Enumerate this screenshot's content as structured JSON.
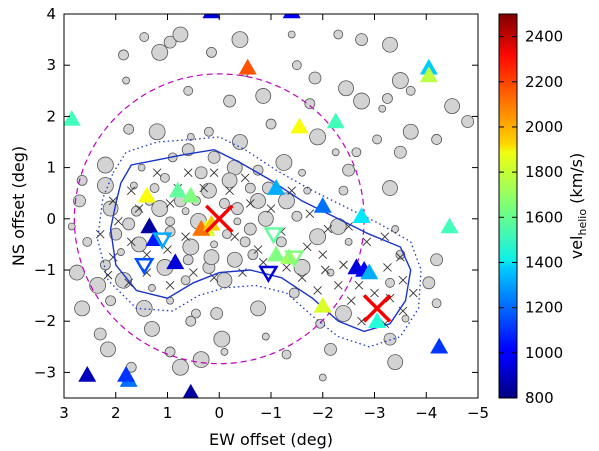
{
  "chart_data": {
    "type": "scatter",
    "xlabel": "EW offset (deg)",
    "ylabel": "NS offset (deg)",
    "xlim": [
      3,
      -5
    ],
    "ylim": [
      -3.5,
      4
    ],
    "x_ticks": [
      3,
      2,
      1,
      0,
      -1,
      -2,
      -3,
      -4,
      -5
    ],
    "x_tick_labels": [
      "3",
      "2",
      "1",
      "0",
      "−1",
      "−2",
      "−3",
      "−4",
      "−5"
    ],
    "y_ticks": [
      -3,
      -2,
      -1,
      0,
      1,
      2,
      3,
      4
    ],
    "y_tick_labels": [
      "−3",
      "−2",
      "−1",
      "0",
      "1",
      "2",
      "3",
      "4"
    ],
    "grid": false,
    "colorbar": {
      "label_main": "vel",
      "label_sub": "helio",
      "label_unit": "(km/s)",
      "range": [
        800,
        2500
      ],
      "ticks": [
        800,
        1000,
        1200,
        1400,
        1600,
        1800,
        2000,
        2200,
        2400
      ],
      "tick_labels": [
        "800",
        "1000",
        "1200",
        "1400",
        "1600",
        "1800",
        "2000",
        "2200",
        "2400"
      ],
      "colormap": "jet"
    },
    "circle_dashed": {
      "cx": 0,
      "cy": 0,
      "r": 2.8,
      "color": "#bf00bf"
    },
    "inner_contour": [
      [
        1.9,
        0.7
      ],
      [
        1.7,
        1.05
      ],
      [
        1.2,
        1.15
      ],
      [
        0.7,
        1.25
      ],
      [
        0.1,
        1.35
      ],
      [
        -0.4,
        1.1
      ],
      [
        -1.0,
        0.75
      ],
      [
        -1.6,
        0.35
      ],
      [
        -2.2,
        0.05
      ],
      [
        -2.9,
        -0.3
      ],
      [
        -3.5,
        -0.55
      ],
      [
        -3.7,
        -1.0
      ],
      [
        -3.6,
        -1.6
      ],
      [
        -3.3,
        -2.05
      ],
      [
        -2.8,
        -2.2
      ],
      [
        -2.3,
        -2.0
      ],
      [
        -1.8,
        -1.55
      ],
      [
        -1.2,
        -1.15
      ],
      [
        -0.6,
        -1.0
      ],
      [
        0.0,
        -1.05
      ],
      [
        0.5,
        -1.25
      ],
      [
        1.0,
        -1.55
      ],
      [
        1.6,
        -1.4
      ],
      [
        2.0,
        -0.9
      ],
      [
        2.1,
        -0.2
      ],
      [
        2.0,
        0.3
      ]
    ],
    "outer_contour": [
      [
        2.05,
        0.9
      ],
      [
        1.8,
        1.3
      ],
      [
        1.2,
        1.5
      ],
      [
        0.5,
        1.55
      ],
      [
        0.0,
        1.6
      ],
      [
        -0.5,
        1.35
      ],
      [
        -1.1,
        0.95
      ],
      [
        -1.8,
        0.55
      ],
      [
        -2.4,
        0.25
      ],
      [
        -3.1,
        -0.1
      ],
      [
        -3.7,
        -0.45
      ],
      [
        -3.9,
        -1.0
      ],
      [
        -3.85,
        -1.75
      ],
      [
        -3.5,
        -2.3
      ],
      [
        -2.9,
        -2.5
      ],
      [
        -2.3,
        -2.3
      ],
      [
        -1.8,
        -1.9
      ],
      [
        -1.3,
        -1.45
      ],
      [
        -0.7,
        -1.3
      ],
      [
        -0.1,
        -1.35
      ],
      [
        0.4,
        -1.5
      ],
      [
        0.9,
        -1.8
      ],
      [
        1.6,
        -1.75
      ],
      [
        2.15,
        -1.2
      ],
      [
        2.35,
        -0.4
      ],
      [
        2.25,
        0.4
      ]
    ],
    "contour_color": "#1a35c8",
    "large_crosses": [
      {
        "x": 0.0,
        "y": 0.0,
        "vel": 2300
      },
      {
        "x": -3.05,
        "y": -1.75,
        "vel": 2300
      }
    ],
    "triangles_up": [
      {
        "x": 2.85,
        "y": 1.95,
        "vel": 1550
      },
      {
        "x": 1.4,
        "y": 0.45,
        "vel": 1850
      },
      {
        "x": 0.55,
        "y": 0.45,
        "vel": 1650
      },
      {
        "x": 0.8,
        "y": 0.55,
        "vel": 1600
      },
      {
        "x": 0.25,
        "y": -0.2,
        "vel": 1800
      },
      {
        "x": 0.35,
        "y": -0.2,
        "vel": 2100
      },
      {
        "x": 0.15,
        "y": -0.1,
        "vel": 1950
      },
      {
        "x": 1.35,
        "y": -0.15,
        "vel": 850
      },
      {
        "x": 1.25,
        "y": -0.4,
        "vel": 1050
      },
      {
        "x": 0.85,
        "y": -0.85,
        "vel": 950
      },
      {
        "x": -0.55,
        "y": 2.95,
        "vel": 2150
      },
      {
        "x": -1.55,
        "y": 1.8,
        "vel": 1850
      },
      {
        "x": -2.25,
        "y": 1.9,
        "vel": 1550
      },
      {
        "x": -1.1,
        "y": 0.6,
        "vel": 1300
      },
      {
        "x": -2.0,
        "y": 0.25,
        "vel": 1200
      },
      {
        "x": -2.75,
        "y": 0.05,
        "vel": 1400
      },
      {
        "x": -4.45,
        "y": -0.15,
        "vel": 1550
      },
      {
        "x": -1.1,
        "y": -0.7,
        "vel": 1650
      },
      {
        "x": -1.35,
        "y": -0.75,
        "vel": 1700
      },
      {
        "x": -2.65,
        "y": -0.95,
        "vel": 950
      },
      {
        "x": -2.8,
        "y": -1.0,
        "vel": 1000
      },
      {
        "x": -2.9,
        "y": -1.05,
        "vel": 1300
      },
      {
        "x": -2.0,
        "y": -1.7,
        "vel": 1800
      },
      {
        "x": -3.05,
        "y": -2.0,
        "vel": 1500
      },
      {
        "x": -4.05,
        "y": 2.95,
        "vel": 1350
      },
      {
        "x": -4.05,
        "y": 2.8,
        "vel": 1750
      },
      {
        "x": -4.25,
        "y": -2.5,
        "vel": 1100
      },
      {
        "x": 2.55,
        "y": -3.05,
        "vel": 900
      },
      {
        "x": 1.75,
        "y": -3.15,
        "vel": 1200
      },
      {
        "x": 1.8,
        "y": -3.05,
        "vel": 1100
      },
      {
        "x": 0.55,
        "y": -3.4,
        "vel": 850
      },
      {
        "x": 0.15,
        "y": 4.05,
        "vel": 950
      },
      {
        "x": -1.4,
        "y": 4.05,
        "vel": 1000
      }
    ],
    "triangles_down_open": [
      {
        "x": 1.45,
        "y": -0.9,
        "vel": 1150
      },
      {
        "x": 1.1,
        "y": -0.4,
        "vel": 1300
      },
      {
        "x": -0.95,
        "y": -1.05,
        "vel": 950
      },
      {
        "x": -1.05,
        "y": -0.3,
        "vel": 1600
      },
      {
        "x": -1.45,
        "y": -0.75,
        "vel": 1650
      }
    ],
    "gray_circles": [
      [
        1.45,
        3.55
      ],
      [
        0.95,
        3.45
      ],
      [
        0.75,
        3.6
      ],
      [
        0.15,
        3.25
      ],
      [
        -0.4,
        3.5
      ],
      [
        -1.4,
        3.6
      ],
      [
        -2.3,
        3.6
      ],
      [
        -2.75,
        3.5
      ],
      [
        -3.3,
        3.4
      ],
      [
        1.85,
        3.2
      ],
      [
        1.15,
        3.25
      ],
      [
        -0.5,
        2.85
      ],
      [
        -1.5,
        3.0
      ],
      [
        -1.85,
        2.75
      ],
      [
        -2.45,
        2.55
      ],
      [
        -3.25,
        2.35
      ],
      [
        -3.5,
        2.7
      ],
      [
        1.8,
        2.7
      ],
      [
        0.6,
        2.5
      ],
      [
        -0.2,
        2.3
      ],
      [
        -0.85,
        2.4
      ],
      [
        -1.75,
        2.25
      ],
      [
        -2.75,
        2.3
      ],
      [
        -3.15,
        2.15
      ],
      [
        -3.7,
        2.5
      ],
      [
        -4.8,
        1.9
      ],
      [
        -4.5,
        2.2
      ],
      [
        1.75,
        1.75
      ],
      [
        1.2,
        1.7
      ],
      [
        0.55,
        1.6
      ],
      [
        0.2,
        1.7
      ],
      [
        0.6,
        1.35
      ],
      [
        -0.4,
        1.5
      ],
      [
        -1.0,
        1.85
      ],
      [
        -1.9,
        1.6
      ],
      [
        -2.25,
        1.3
      ],
      [
        -3.05,
        1.55
      ],
      [
        -3.5,
        1.3
      ],
      [
        -3.7,
        1.7
      ],
      [
        -4.2,
        1.55
      ],
      [
        2.2,
        1.05
      ],
      [
        1.5,
        1.0
      ],
      [
        0.9,
        1.2
      ],
      [
        0.1,
        1.2
      ],
      [
        -0.3,
        1.0
      ],
      [
        -0.75,
        0.95
      ],
      [
        -1.25,
        1.1
      ],
      [
        -1.6,
        0.9
      ],
      [
        -2.65,
        1.3
      ],
      [
        -2.5,
        0.95
      ],
      [
        -3.3,
        0.6
      ],
      [
        2.65,
        0.75
      ],
      [
        2.2,
        0.65
      ],
      [
        1.65,
        0.65
      ],
      [
        1.05,
        0.8
      ],
      [
        0.35,
        0.9
      ],
      [
        -0.2,
        0.75
      ],
      [
        -0.6,
        0.6
      ],
      [
        -1.3,
        0.35
      ],
      [
        -1.7,
        0.55
      ],
      [
        -2.4,
        0.55
      ],
      [
        2.7,
        0.35
      ],
      [
        2.1,
        0.2
      ],
      [
        1.6,
        0.15
      ],
      [
        1.15,
        0.2
      ],
      [
        0.65,
        0.15
      ],
      [
        0.45,
        0.35
      ],
      [
        -0.35,
        0.2
      ],
      [
        -0.75,
        0.35
      ],
      [
        -1.5,
        0.05
      ],
      [
        -2.3,
        -0.15
      ],
      [
        -3.4,
        -0.2
      ],
      [
        2.55,
        -0.45
      ],
      [
        2.0,
        -0.3
      ],
      [
        1.55,
        -0.5
      ],
      [
        0.95,
        -0.25
      ],
      [
        0.55,
        -0.55
      ],
      [
        0.1,
        -0.5
      ],
      [
        -0.15,
        -0.3
      ],
      [
        -0.6,
        -0.2
      ],
      [
        -0.9,
        0.0
      ],
      [
        -1.2,
        -0.45
      ],
      [
        -1.9,
        -0.35
      ],
      [
        -2.5,
        -0.45
      ],
      [
        -3.5,
        -0.7
      ],
      [
        -4.2,
        -0.8
      ],
      [
        2.75,
        -1.05
      ],
      [
        2.2,
        -0.9
      ],
      [
        1.85,
        -1.2
      ],
      [
        1.3,
        -1.35
      ],
      [
        0.65,
        -1.2
      ],
      [
        0.2,
        -0.95
      ],
      [
        -0.3,
        -0.8
      ],
      [
        -0.65,
        -0.7
      ],
      [
        -1.6,
        -0.95
      ],
      [
        -2.15,
        -1.05
      ],
      [
        -3.3,
        -1.25
      ],
      [
        -4.05,
        -1.25
      ],
      [
        2.65,
        -1.75
      ],
      [
        2.1,
        -1.6
      ],
      [
        1.45,
        -1.75
      ],
      [
        0.95,
        -1.6
      ],
      [
        0.45,
        -1.85
      ],
      [
        0.05,
        -1.85
      ],
      [
        -0.75,
        -1.75
      ],
      [
        -1.45,
        -1.45
      ],
      [
        -2.4,
        -1.85
      ],
      [
        -3.6,
        -1.95
      ],
      [
        -4.2,
        -1.65
      ],
      [
        2.3,
        -2.25
      ],
      [
        1.3,
        -2.15
      ],
      [
        0.55,
        -2.0
      ],
      [
        -0.05,
        -2.35
      ],
      [
        -0.9,
        -2.3
      ],
      [
        -1.95,
        -2.05
      ],
      [
        -3.3,
        -2.35
      ],
      [
        2.15,
        -2.55
      ],
      [
        0.95,
        -2.6
      ],
      [
        0.35,
        -2.75
      ],
      [
        -0.1,
        -2.6
      ],
      [
        -1.3,
        -2.65
      ],
      [
        -2.15,
        -2.55
      ],
      [
        -3.4,
        -2.8
      ],
      [
        1.7,
        -2.9
      ],
      [
        0.75,
        -2.9
      ],
      [
        -2.0,
        -3.1
      ],
      [
        1.25,
        0.6
      ],
      [
        0.75,
        0.35
      ],
      [
        0.2,
        0.55
      ],
      [
        -0.1,
        0.3
      ],
      [
        0.4,
        -0.05
      ],
      [
        -0.35,
        -0.05
      ],
      [
        0.95,
        -0.05
      ],
      [
        1.75,
        -0.1
      ],
      [
        0.15,
        -0.75
      ],
      [
        -0.5,
        -0.45
      ],
      [
        1.05,
        -0.95
      ],
      [
        1.9,
        -0.65
      ],
      [
        1.35,
        0.35
      ],
      [
        -0.95,
        0.6
      ],
      [
        -0.1,
        -1.2
      ],
      [
        0.6,
        -0.8
      ],
      [
        2.35,
        -1.3
      ],
      [
        2.85,
        -0.15
      ]
    ],
    "small_crosses": [
      [
        1.7,
        0.55
      ],
      [
        1.55,
        0.2
      ],
      [
        1.95,
        -0.05
      ],
      [
        1.7,
        -0.45
      ],
      [
        2.05,
        -0.75
      ],
      [
        1.4,
        -0.7
      ],
      [
        0.95,
        0.3
      ],
      [
        0.6,
        0.9
      ],
      [
        0.3,
        0.6
      ],
      [
        -0.2,
        0.55
      ],
      [
        -0.6,
        0.3
      ],
      [
        -0.3,
        -0.35
      ],
      [
        -0.75,
        -0.6
      ],
      [
        -1.0,
        0.2
      ],
      [
        -1.4,
        0.55
      ],
      [
        -1.75,
        0.1
      ],
      [
        -2.1,
        -0.2
      ],
      [
        -2.5,
        -0.15
      ],
      [
        -2.85,
        -0.45
      ],
      [
        -3.2,
        -0.35
      ],
      [
        -3.5,
        -0.75
      ],
      [
        -3.25,
        -0.95
      ],
      [
        -3.55,
        -1.2
      ],
      [
        -3.3,
        -1.55
      ],
      [
        -3.55,
        -1.8
      ],
      [
        -3.2,
        -2.05
      ],
      [
        -2.75,
        -2.0
      ],
      [
        -2.55,
        -1.6
      ],
      [
        -2.3,
        -1.3
      ],
      [
        -1.9,
        -1.4
      ],
      [
        -1.6,
        -1.15
      ],
      [
        -1.3,
        -0.95
      ],
      [
        -0.85,
        -0.85
      ],
      [
        -0.45,
        -1.05
      ],
      [
        0.1,
        -1.15
      ],
      [
        0.5,
        -1.05
      ],
      [
        0.95,
        -1.3
      ],
      [
        1.4,
        -1.05
      ],
      [
        1.75,
        -1.25
      ],
      [
        2.15,
        -1.1
      ],
      [
        2.3,
        -0.3
      ],
      [
        2.05,
        0.35
      ],
      [
        -2.0,
        -0.7
      ],
      [
        -1.7,
        -0.55
      ],
      [
        -2.4,
        -0.9
      ],
      [
        -2.7,
        -1.3
      ],
      [
        -3.0,
        -1.45
      ],
      [
        -2.05,
        -1.0
      ],
      [
        0.8,
        0.6
      ],
      [
        0.1,
        0.9
      ],
      [
        -0.5,
        0.8
      ],
      [
        -1.2,
        -0.25
      ],
      [
        0.65,
        -0.35
      ],
      [
        1.2,
        0.9
      ],
      [
        1.0,
        -0.6
      ],
      [
        -3.75,
        -1.45
      ]
    ]
  }
}
